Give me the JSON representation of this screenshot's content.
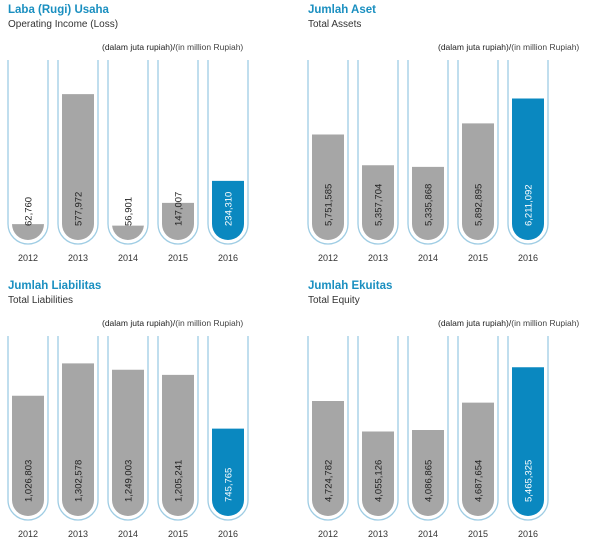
{
  "colors": {
    "accent": "#1a8fc0",
    "bar": "#a6a6a6",
    "highlight": "#0a88c0",
    "tube": "#9fcde4"
  },
  "chart_data": [
    {
      "type": "bar",
      "title": "Laba (Rugi) Usaha",
      "subtitle": "Operating Income (Loss)",
      "unit_id": "(dalam juta rupiah)/",
      "unit_en": "(in million Rupiah)",
      "categories": [
        "2012",
        "2013",
        "2014",
        "2015",
        "2016"
      ],
      "values": [
        62760,
        577972,
        56901,
        147007,
        234310
      ],
      "labels": [
        "62,760",
        "577,972",
        "56,901",
        "147,007",
        "234,310"
      ],
      "highlight_index": 4,
      "ylim": [
        0,
        650000
      ]
    },
    {
      "type": "bar",
      "title": "Jumlah Aset",
      "subtitle": "Total Assets",
      "unit_id": "(dalam juta rupiah)/",
      "unit_en": "(in million Rupiah)",
      "categories": [
        "2012",
        "2013",
        "2014",
        "2015",
        "2016"
      ],
      "values": [
        5751585,
        5357704,
        5335868,
        5892895,
        6211092
      ],
      "labels": [
        "5,751,585",
        "5,357,704",
        "5,335,868",
        "5,892,895",
        "6,211,092"
      ],
      "highlight_index": 4,
      "ylim": [
        4400000,
        6500000
      ]
    },
    {
      "type": "bar",
      "title": "Jumlah Liabilitas",
      "subtitle": "Total Liabilities",
      "unit_id": "(dalam juta rupiah)/",
      "unit_en": "(in million Rupiah)",
      "categories": [
        "2012",
        "2013",
        "2014",
        "2015",
        "2016"
      ],
      "values": [
        1026803,
        1302578,
        1249003,
        1205241,
        745765
      ],
      "labels": [
        "1,026,803",
        "1,302,578",
        "1,249,003",
        "1,205,241",
        "745,765"
      ],
      "highlight_index": 4,
      "ylim": [
        0,
        1400000
      ]
    },
    {
      "type": "bar",
      "title": "Jumlah Ekuitas",
      "subtitle": "Total Equity",
      "unit_id": "(dalam juta rupiah)/",
      "unit_en": "(in million Rupiah)",
      "categories": [
        "2012",
        "2013",
        "2014",
        "2015",
        "2016"
      ],
      "values": [
        4724782,
        4055126,
        4086865,
        4687654,
        5465325
      ],
      "labels": [
        "4,724,782",
        "4,055,126",
        "4,086,865",
        "4,687,654",
        "5,465,325"
      ],
      "highlight_index": 4,
      "ylim": [
        2200000,
        5800000
      ]
    }
  ]
}
